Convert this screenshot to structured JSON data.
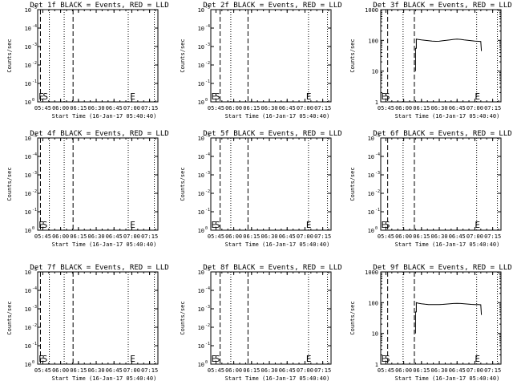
{
  "chart_data": [
    {
      "type": "line",
      "detector": "1f",
      "title": "Det 1f BLACK = Events, RED = LLD",
      "xlabel": "Start Time (16-Jan-17 05:40:40)",
      "ylabel": "Counts/sec",
      "x_ticks": [
        "05:45",
        "06:00",
        "06:15",
        "06:30",
        "06:45",
        "07:00",
        "07:15"
      ],
      "y_scale": "log",
      "ylim": [
        1,
        1000
      ],
      "y_ticks": [
        {
          "base": "10",
          "exp": "0"
        },
        {
          "base": "10",
          "exp": "-1"
        },
        {
          "base": "10",
          "exp": "-2"
        },
        {
          "base": "10",
          "exp": "-3"
        },
        {
          "base": "10",
          "exp": "-4"
        },
        {
          "base": "10",
          "exp": "-5"
        }
      ],
      "xlim": [
        "05:40:40",
        "07:22:00"
      ],
      "vlines": [
        {
          "x": "05:43:00",
          "style": "dashed"
        },
        {
          "x": "05:50:30",
          "style": "dotted"
        },
        {
          "x": "06:03:00",
          "style": "dotted"
        },
        {
          "x": "06:10:30",
          "style": "dashed"
        },
        {
          "x": "06:57:00",
          "style": "dotted"
        },
        {
          "x": "07:19:00",
          "style": "dotted"
        }
      ],
      "labels": [
        {
          "text": "E",
          "x": "05:41:30"
        },
        {
          "text": "S",
          "x": "05:45:00"
        },
        {
          "text": "E",
          "x": "06:58:30"
        }
      ],
      "series": []
    },
    {
      "type": "line",
      "detector": "2f",
      "title": "Det 2f BLACK = Events, RED = LLD",
      "xlabel": "Start Time (16-Jan-17 05:40:40)",
      "ylabel": "Counts/sec",
      "x_ticks": [
        "05:45",
        "06:00",
        "06:15",
        "06:30",
        "06:45",
        "07:00",
        "07:15"
      ],
      "y_scale": "log",
      "ylim": [
        1,
        1000
      ],
      "y_ticks": [
        {
          "base": "10",
          "exp": "0"
        },
        {
          "base": "10",
          "exp": "-1"
        },
        {
          "base": "10",
          "exp": "-2"
        },
        {
          "base": "10",
          "exp": "-3"
        },
        {
          "base": "10",
          "exp": "-4"
        },
        {
          "base": "10",
          "exp": "-5"
        }
      ],
      "xlim": [
        "05:40:40",
        "07:22:00"
      ],
      "vlines": [
        {
          "x": "05:48:30",
          "style": "dashed"
        },
        {
          "x": "05:57:30",
          "style": "dotted"
        },
        {
          "x": "06:12:00",
          "style": "dashed"
        },
        {
          "x": "07:03:00",
          "style": "dotted"
        },
        {
          "x": "07:19:00",
          "style": "dotted"
        }
      ],
      "labels": [
        {
          "text": "E",
          "x": "05:41:00"
        },
        {
          "text": "S",
          "x": "05:44:00"
        },
        {
          "text": "E",
          "x": "07:01:00"
        }
      ],
      "series": []
    },
    {
      "type": "line",
      "detector": "3f",
      "title": "Det 3f BLACK = Events, RED = LLD",
      "xlabel": "Start Time (16-Jan-17 05:40:40)",
      "ylabel": "Counts/sec",
      "x_ticks": [
        "05:45",
        "06:00",
        "06:15",
        "06:30",
        "06:45",
        "07:00",
        "07:15"
      ],
      "y_scale": "log",
      "ylim": [
        1,
        1000
      ],
      "y_ticks": [
        {
          "text": "1"
        },
        {
          "text": "10"
        },
        {
          "text": "100"
        },
        {
          "text": "1000"
        }
      ],
      "xlim": [
        "05:40:40",
        "07:22:00"
      ],
      "vlines": [
        {
          "x": "05:46:30",
          "style": "dashed"
        },
        {
          "x": "05:59:30",
          "style": "dotted"
        },
        {
          "x": "06:09:00",
          "style": "dashed"
        },
        {
          "x": "07:01:30",
          "style": "dotted"
        },
        {
          "x": "07:19:00",
          "style": "dotted"
        }
      ],
      "labels": [
        {
          "text": "E",
          "x": "05:41:00"
        },
        {
          "text": "S",
          "x": "05:44:00"
        },
        {
          "text": "E",
          "x": "07:00:00"
        }
      ],
      "series": [
        {
          "color": "#000000",
          "points": [
            [
              "06:10:00",
              10
            ],
            [
              "06:10:00",
              55
            ],
            [
              "06:10:40",
              55
            ],
            [
              "06:10:40",
              110
            ],
            [
              "06:12:00",
              108
            ],
            [
              "06:15:00",
              104
            ],
            [
              "06:18:00",
              101
            ],
            [
              "06:21:00",
              98
            ],
            [
              "06:24:00",
              95
            ],
            [
              "06:27:00",
              93
            ],
            [
              "06:30:00",
              94
            ],
            [
              "06:33:00",
              97
            ],
            [
              "06:36:00",
              100
            ],
            [
              "06:39:00",
              104
            ],
            [
              "06:42:00",
              108
            ],
            [
              "06:45:00",
              110
            ],
            [
              "06:48:00",
              108
            ],
            [
              "06:51:00",
              104
            ],
            [
              "06:54:00",
              101
            ],
            [
              "06:57:00",
              98
            ],
            [
              "07:00:00",
              95
            ],
            [
              "07:03:00",
              93
            ],
            [
              "07:05:00",
              92
            ],
            [
              "07:05:30",
              45
            ]
          ]
        }
      ]
    },
    {
      "type": "line",
      "detector": "4f",
      "title": "Det 4f BLACK = Events, RED = LLD",
      "xlabel": "Start Time (16-Jan-17 05:40:40)",
      "ylabel": "Counts/sec",
      "x_ticks": [
        "05:45",
        "06:00",
        "06:15",
        "06:30",
        "06:45",
        "07:00",
        "07:15"
      ],
      "y_scale": "log",
      "ylim": [
        1,
        1000
      ],
      "y_ticks": [
        {
          "base": "10",
          "exp": "0"
        },
        {
          "base": "10",
          "exp": "-1"
        },
        {
          "base": "10",
          "exp": "-2"
        },
        {
          "base": "10",
          "exp": "-3"
        },
        {
          "base": "10",
          "exp": "-4"
        },
        {
          "base": "10",
          "exp": "-5"
        }
      ],
      "xlim": [
        "05:40:40",
        "07:22:00"
      ],
      "vlines": [
        {
          "x": "05:43:00",
          "style": "dashed"
        },
        {
          "x": "05:50:30",
          "style": "dotted"
        },
        {
          "x": "06:03:00",
          "style": "dotted"
        },
        {
          "x": "06:10:30",
          "style": "dashed"
        },
        {
          "x": "06:57:00",
          "style": "dotted"
        },
        {
          "x": "07:19:00",
          "style": "dotted"
        }
      ],
      "labels": [
        {
          "text": "E",
          "x": "05:41:30"
        },
        {
          "text": "S",
          "x": "05:44:30"
        },
        {
          "text": "E",
          "x": "06:58:30"
        }
      ],
      "series": []
    },
    {
      "type": "line",
      "detector": "5f",
      "title": "Det 5f BLACK = Events, RED = LLD",
      "xlabel": "Start Time (16-Jan-17 05:40:40)",
      "ylabel": "Counts/sec",
      "x_ticks": [
        "05:45",
        "06:00",
        "06:15",
        "06:30",
        "06:45",
        "07:00",
        "07:15"
      ],
      "y_scale": "log",
      "ylim": [
        1,
        1000
      ],
      "y_ticks": [
        {
          "base": "10",
          "exp": "0"
        },
        {
          "base": "10",
          "exp": "-1"
        },
        {
          "base": "10",
          "exp": "-2"
        },
        {
          "base": "10",
          "exp": "-3"
        },
        {
          "base": "10",
          "exp": "-4"
        },
        {
          "base": "10",
          "exp": "-5"
        }
      ],
      "xlim": [
        "05:40:40",
        "07:22:00"
      ],
      "vlines": [
        {
          "x": "05:48:30",
          "style": "dashed"
        },
        {
          "x": "05:57:30",
          "style": "dotted"
        },
        {
          "x": "06:12:00",
          "style": "dashed"
        },
        {
          "x": "07:03:00",
          "style": "dotted"
        },
        {
          "x": "07:19:00",
          "style": "dotted"
        }
      ],
      "labels": [
        {
          "text": "E",
          "x": "05:41:00"
        },
        {
          "text": "S",
          "x": "05:44:00"
        },
        {
          "text": "E",
          "x": "07:01:00"
        }
      ],
      "series": []
    },
    {
      "type": "line",
      "detector": "6f",
      "title": "Det 6f BLACK = Events, RED = LLD",
      "xlabel": "Start Time (16-Jan-17 05:40:40)",
      "ylabel": "Counts/sec",
      "x_ticks": [
        "05:45",
        "06:00",
        "06:15",
        "06:30",
        "06:45",
        "07:00",
        "07:15"
      ],
      "y_scale": "log",
      "ylim": [
        1,
        1000
      ],
      "y_ticks": [
        {
          "base": "10",
          "exp": "0"
        },
        {
          "base": "10",
          "exp": "-1"
        },
        {
          "base": "10",
          "exp": "-2"
        },
        {
          "base": "10",
          "exp": "-3"
        },
        {
          "base": "10",
          "exp": "-4"
        },
        {
          "base": "10",
          "exp": "-5"
        }
      ],
      "xlim": [
        "05:40:40",
        "07:22:00"
      ],
      "vlines": [
        {
          "x": "05:46:30",
          "style": "dashed"
        },
        {
          "x": "05:59:30",
          "style": "dotted"
        },
        {
          "x": "06:09:00",
          "style": "dashed"
        },
        {
          "x": "07:01:30",
          "style": "dotted"
        },
        {
          "x": "07:19:00",
          "style": "dotted"
        }
      ],
      "labels": [
        {
          "text": "E",
          "x": "05:41:00"
        },
        {
          "text": "S",
          "x": "05:44:00"
        },
        {
          "text": "E",
          "x": "07:00:00"
        }
      ],
      "series": []
    },
    {
      "type": "line",
      "detector": "7f",
      "title": "Det 7f BLACK = Events, RED = LLD",
      "xlabel": "Start Time (16-Jan-17 05:40:40)",
      "ylabel": "Counts/sec",
      "x_ticks": [
        "05:45",
        "06:00",
        "06:15",
        "06:30",
        "06:45",
        "07:00",
        "07:15"
      ],
      "y_scale": "log",
      "ylim": [
        1,
        1000
      ],
      "y_ticks": [
        {
          "base": "10",
          "exp": "0"
        },
        {
          "base": "10",
          "exp": "-1"
        },
        {
          "base": "10",
          "exp": "-2"
        },
        {
          "base": "10",
          "exp": "-3"
        },
        {
          "base": "10",
          "exp": "-4"
        },
        {
          "base": "10",
          "exp": "-5"
        }
      ],
      "xlim": [
        "05:40:40",
        "07:22:00"
      ],
      "vlines": [
        {
          "x": "05:43:00",
          "style": "dashed"
        },
        {
          "x": "05:50:30",
          "style": "dotted"
        },
        {
          "x": "06:03:00",
          "style": "dotted"
        },
        {
          "x": "06:10:30",
          "style": "dashed"
        },
        {
          "x": "06:57:00",
          "style": "dotted"
        },
        {
          "x": "07:19:00",
          "style": "dotted"
        }
      ],
      "labels": [
        {
          "text": "E",
          "x": "05:41:30"
        },
        {
          "text": "S",
          "x": "05:44:30"
        },
        {
          "text": "E",
          "x": "06:58:30"
        }
      ],
      "series": []
    },
    {
      "type": "line",
      "detector": "8f",
      "title": "Det 8f BLACK = Events, RED = LLD",
      "xlabel": "Start Time (16-Jan-17 05:40:40)",
      "ylabel": "Counts/sec",
      "x_ticks": [
        "05:45",
        "06:00",
        "06:15",
        "06:30",
        "06:45",
        "07:00",
        "07:15"
      ],
      "y_scale": "log",
      "ylim": [
        1,
        1000
      ],
      "y_ticks": [
        {
          "base": "10",
          "exp": "0"
        },
        {
          "base": "10",
          "exp": "-1"
        },
        {
          "base": "10",
          "exp": "-2"
        },
        {
          "base": "10",
          "exp": "-3"
        },
        {
          "base": "10",
          "exp": "-4"
        },
        {
          "base": "10",
          "exp": "-5"
        }
      ],
      "xlim": [
        "05:40:40",
        "07:22:00"
      ],
      "vlines": [
        {
          "x": "05:48:30",
          "style": "dashed"
        },
        {
          "x": "05:57:30",
          "style": "dotted"
        },
        {
          "x": "06:12:00",
          "style": "dashed"
        },
        {
          "x": "07:03:00",
          "style": "dotted"
        },
        {
          "x": "07:19:00",
          "style": "dotted"
        }
      ],
      "labels": [
        {
          "text": "E",
          "x": "05:41:00"
        },
        {
          "text": "S",
          "x": "05:44:00"
        },
        {
          "text": "E",
          "x": "07:01:00"
        }
      ],
      "series": []
    },
    {
      "type": "line",
      "detector": "9f",
      "title": "Det 9f BLACK = Events, RED = LLD",
      "xlabel": "Start Time (16-Jan-17 05:40:40)",
      "ylabel": "Counts/sec",
      "x_ticks": [
        "05:45",
        "06:00",
        "06:15",
        "06:30",
        "06:45",
        "07:00",
        "07:15"
      ],
      "y_scale": "log",
      "ylim": [
        1,
        1000
      ],
      "y_ticks": [
        {
          "text": "1"
        },
        {
          "text": "10"
        },
        {
          "text": "100"
        },
        {
          "text": "1000"
        }
      ],
      "xlim": [
        "05:40:40",
        "07:22:00"
      ],
      "vlines": [
        {
          "x": "05:46:30",
          "style": "dashed"
        },
        {
          "x": "05:59:30",
          "style": "dotted"
        },
        {
          "x": "06:09:00",
          "style": "dashed"
        },
        {
          "x": "07:01:30",
          "style": "dotted"
        },
        {
          "x": "07:19:00",
          "style": "dotted"
        }
      ],
      "labels": [
        {
          "text": "E",
          "x": "05:41:00"
        },
        {
          "text": "S",
          "x": "05:44:00"
        },
        {
          "text": "E",
          "x": "07:00:00"
        }
      ],
      "series": [
        {
          "color": "#000000",
          "points": [
            [
              "06:10:00",
              10
            ],
            [
              "06:10:00",
              50
            ],
            [
              "06:10:40",
              50
            ],
            [
              "06:10:40",
              100
            ],
            [
              "06:12:00",
              96
            ],
            [
              "06:15:00",
              92
            ],
            [
              "06:18:00",
              89
            ],
            [
              "06:21:00",
              87
            ],
            [
              "06:24:00",
              86
            ],
            [
              "06:27:00",
              86
            ],
            [
              "06:30:00",
              87
            ],
            [
              "06:33:00",
              88
            ],
            [
              "06:36:00",
              90
            ],
            [
              "06:39:00",
              92
            ],
            [
              "06:42:00",
              94
            ],
            [
              "06:45:00",
              95
            ],
            [
              "06:48:00",
              94
            ],
            [
              "06:51:00",
              92
            ],
            [
              "06:54:00",
              90
            ],
            [
              "06:57:00",
              88
            ],
            [
              "07:00:00",
              87
            ],
            [
              "07:03:00",
              86
            ],
            [
              "07:05:00",
              85
            ],
            [
              "07:05:30",
              40
            ]
          ]
        }
      ]
    }
  ]
}
